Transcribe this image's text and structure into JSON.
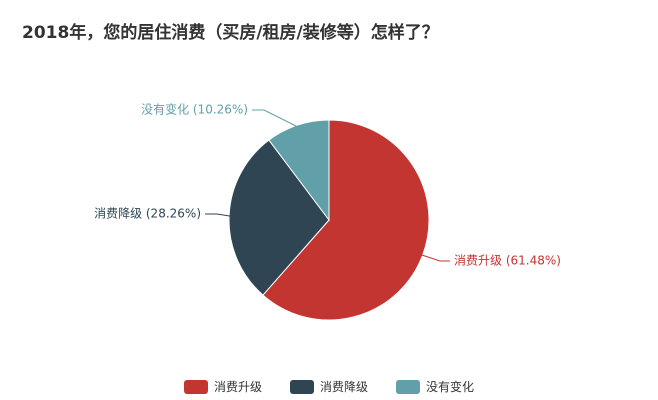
{
  "title": "2018年，您的居住消费（买房/租房/装修等）怎样了？",
  "chart_data": {
    "type": "pie",
    "title": "2018年，您的居住消费（买房/租房/装修等）怎样了？",
    "slices": [
      {
        "name": "消费升级",
        "value": 61.48,
        "label": "消费升级 (61.48%)",
        "color": "#c23531"
      },
      {
        "name": "消费降级",
        "value": 28.26,
        "label": "消费降级 (28.26%)",
        "color": "#2f4554"
      },
      {
        "name": "没有变化",
        "value": 10.26,
        "label": "没有变化 (10.26%)",
        "color": "#61a0a8"
      }
    ],
    "legend_position": "bottom",
    "start_angle_deg": 90,
    "direction": "clockwise"
  }
}
